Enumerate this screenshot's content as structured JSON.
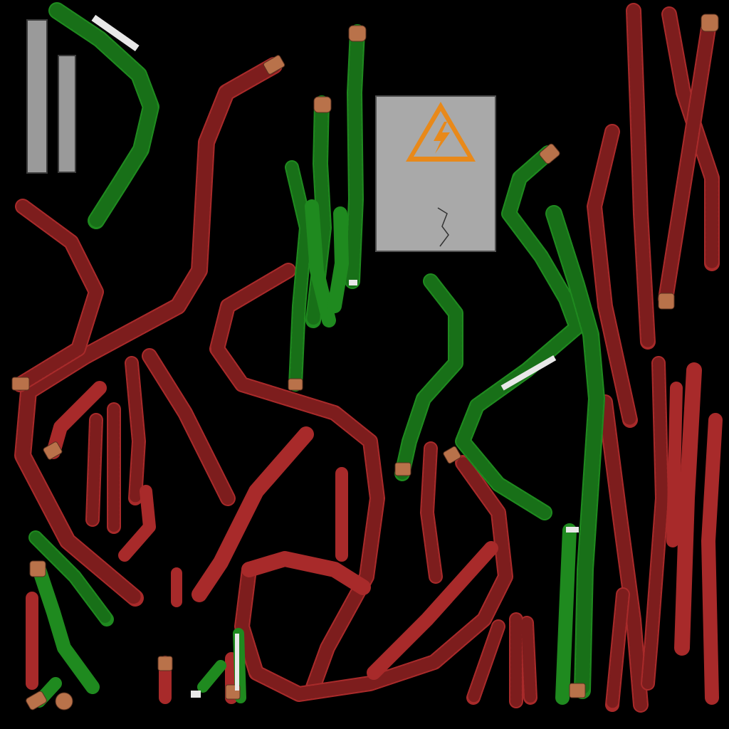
{
  "texture": {
    "colors": {
      "background": "#000000",
      "cable_red": "#a82a2a",
      "cable_green": "#1f8a1f",
      "copper_cap": "#b9724a",
      "metal_panel": "#a9a9a9",
      "warning_orange": "#e8891a"
    },
    "icons": {
      "warning": "high-voltage-warning-icon"
    }
  }
}
